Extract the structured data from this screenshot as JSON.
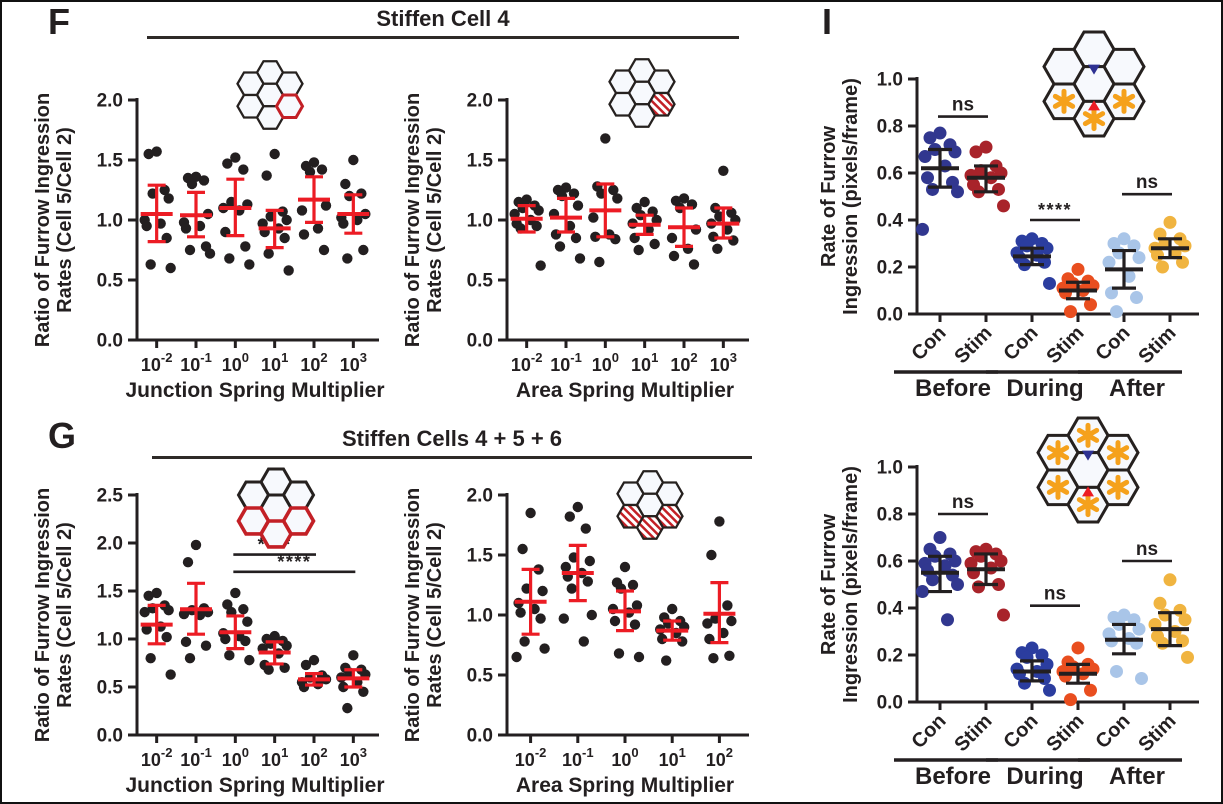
{
  "panels": {
    "F": {
      "letter": "F",
      "title": "Stiffen Cell 4"
    },
    "G": {
      "letter": "G",
      "title": "Stiffen Cells 4 + 5 + 6"
    },
    "I": {
      "letter": "I"
    }
  },
  "colors": {
    "axis": "#231f20",
    "dot_black": "#231f20",
    "mean_red": "#ec1c24",
    "mean_black": "#231f20",
    "hex_outline": "#26211f",
    "hex_red": "#c32026",
    "hex_fill": "#f7f9fd",
    "asterisk_orange": "#f5a11c",
    "tri_blue": "#2e3192",
    "tri_red": "#ec1c24",
    "before_con": "#31378f",
    "before_stim": "#a8232a",
    "during_con": "#2b3d9f",
    "during_stim": "#e94e1f",
    "after_con": "#a9c5e8",
    "after_stim": "#f0b440"
  },
  "chart_data": [
    {
      "id": "f-junction",
      "type": "scatter",
      "panel": "F",
      "title": "Stiffen Cell 4",
      "ylabel": [
        "Ratio of Furrow Ingression",
        "Rates (Cell 5/Cell 2)"
      ],
      "xlabel": "Junction Spring Multiplier",
      "ylim": [
        0,
        2.0
      ],
      "yticks": [
        "0.0",
        "0.5",
        "1.0",
        "1.5",
        "2.0"
      ],
      "xtick_style": "log",
      "categories": [
        "10^-2",
        "10^-1",
        "10^0",
        "10^1",
        "10^2",
        "10^3"
      ],
      "point_color": "dot_black",
      "stat_color": "mean_red",
      "stat_type": "mean_sd",
      "grid": false,
      "groups": [
        {
          "points": [
            1.57,
            1.55,
            1.25,
            1.22,
            1.18,
            1.0,
            0.97,
            0.95,
            0.85,
            0.63,
            0.6
          ],
          "mean": 1.05,
          "lo": 0.82,
          "hi": 1.29
        },
        {
          "points": [
            1.36,
            1.35,
            1.33,
            1.3,
            1.05,
            0.98,
            0.95,
            0.93,
            0.78,
            0.75,
            0.72
          ],
          "mean": 1.04,
          "lo": 0.86,
          "hi": 1.23
        },
        {
          "points": [
            1.52,
            1.47,
            1.42,
            1.15,
            1.13,
            1.1,
            1.08,
            0.9,
            0.78,
            0.68,
            0.63
          ],
          "mean": 1.1,
          "lo": 0.87,
          "hi": 1.34
        },
        {
          "points": [
            1.55,
            1.37,
            1.07,
            1.03,
            1.0,
            0.97,
            0.93,
            0.9,
            0.85,
            0.72,
            0.58
          ],
          "mean": 0.93,
          "lo": 0.77,
          "hi": 1.08
        },
        {
          "points": [
            1.48,
            1.45,
            1.42,
            1.4,
            1.12,
            1.08,
            0.93,
            0.88,
            0.75
          ],
          "mean": 1.17,
          "lo": 0.98,
          "hi": 1.36
        },
        {
          "points": [
            1.5,
            1.3,
            1.22,
            1.2,
            1.05,
            1.02,
            1.0,
            0.97,
            0.75,
            0.68
          ],
          "mean": 1.05,
          "lo": 0.89,
          "hi": 1.21
        }
      ],
      "sig": [],
      "inset": {
        "red_outline": [
          "SE"
        ],
        "hatched": [],
        "asterisks": [],
        "triangles": false
      }
    },
    {
      "id": "f-area",
      "type": "scatter",
      "panel": "F",
      "title": "Stiffen Cell 4",
      "ylabel": [
        "Ratio of Furrow Ingression",
        "Rates (Cell 5/Cell 2)"
      ],
      "xlabel": "Area Spring Multiplier",
      "ylim": [
        0,
        2.0
      ],
      "yticks": [
        "0.0",
        "0.5",
        "1.0",
        "1.5",
        "2.0"
      ],
      "xtick_style": "log",
      "categories": [
        "10^-2",
        "10^-1",
        "10^0",
        "10^1",
        "10^2",
        "10^3"
      ],
      "point_color": "dot_black",
      "stat_color": "mean_red",
      "stat_type": "mean_sd",
      "grid": false,
      "groups": [
        {
          "points": [
            1.17,
            1.15,
            1.12,
            1.1,
            1.08,
            1.05,
            1.0,
            0.97,
            0.95,
            0.93,
            0.62
          ],
          "mean": 1.01,
          "lo": 0.9,
          "hi": 1.12
        },
        {
          "points": [
            1.27,
            1.25,
            1.22,
            1.2,
            1.12,
            1.05,
            0.95,
            0.88,
            0.85,
            0.78,
            0.68
          ],
          "mean": 1.02,
          "lo": 0.9,
          "hi": 1.18
        },
        {
          "points": [
            1.68,
            1.28,
            1.25,
            1.22,
            1.18,
            1.02,
            0.88,
            0.86,
            0.84,
            0.65
          ],
          "mean": 1.08,
          "lo": 0.86,
          "hi": 1.3
        },
        {
          "points": [
            1.15,
            1.1,
            1.07,
            1.04,
            1.0,
            0.97,
            0.92,
            0.85,
            0.8,
            0.75
          ],
          "mean": 0.96,
          "lo": 0.88,
          "hi": 1.04
        },
        {
          "points": [
            1.18,
            1.16,
            1.13,
            1.1,
            0.92,
            0.85,
            0.76,
            0.7,
            0.63
          ],
          "mean": 0.94,
          "lo": 0.78,
          "hi": 1.1
        },
        {
          "points": [
            1.41,
            1.1,
            1.06,
            1.03,
            1.0,
            0.97,
            0.92,
            0.86,
            0.83,
            0.76
          ],
          "mean": 0.97,
          "lo": 0.85,
          "hi": 1.1
        }
      ],
      "sig": [],
      "inset": {
        "red_outline": [],
        "hatched": [
          "SE"
        ],
        "asterisks": [],
        "triangles": false
      }
    },
    {
      "id": "g-junction",
      "type": "scatter",
      "panel": "G",
      "title": "Stiffen Cells 4 + 5 + 6",
      "ylabel": [
        "Ratio of Furrow Ingression",
        "Rates (Cell 5/Cell 2)"
      ],
      "xlabel": "Junction Spring Multiplier",
      "ylim": [
        0,
        2.5
      ],
      "yticks": [
        "0.0",
        "0.5",
        "1.0",
        "1.5",
        "2.0",
        "2.5"
      ],
      "xtick_style": "log",
      "categories": [
        "10^-2",
        "10^-1",
        "10^0",
        "10^1",
        "10^2",
        "10^3"
      ],
      "point_color": "dot_black",
      "stat_color": "mean_red",
      "stat_type": "mean_sd",
      "grid": false,
      "groups": [
        {
          "points": [
            1.48,
            1.45,
            1.35,
            1.32,
            1.3,
            1.28,
            1.13,
            1.1,
            1.02,
            0.8,
            0.63
          ],
          "mean": 1.15,
          "lo": 0.95,
          "hi": 1.35
        },
        {
          "points": [
            1.98,
            1.8,
            1.32,
            1.3,
            1.28,
            1.26,
            1.25,
            0.97,
            0.93,
            0.8
          ],
          "mean": 1.31,
          "lo": 1.05,
          "hi": 1.58
        },
        {
          "points": [
            1.48,
            1.36,
            1.31,
            1.28,
            1.18,
            1.06,
            1.03,
            1.0,
            0.98,
            0.83,
            0.78
          ],
          "mean": 1.07,
          "lo": 0.9,
          "hi": 1.24
        },
        {
          "points": [
            1.03,
            1.0,
            0.98,
            0.95,
            0.93,
            0.9,
            0.85,
            0.73,
            0.7,
            0.68
          ],
          "mean": 0.86,
          "lo": 0.74,
          "hi": 0.97
        },
        {
          "points": [
            0.78,
            0.73,
            0.62,
            0.6,
            0.58,
            0.55,
            0.53,
            0.5
          ],
          "mean": 0.58,
          "lo": 0.52,
          "hi": 0.64
        },
        {
          "points": [
            0.83,
            0.7,
            0.68,
            0.65,
            0.63,
            0.6,
            0.55,
            0.5,
            0.45,
            0.28
          ],
          "mean": 0.59,
          "lo": 0.5,
          "hi": 0.68
        }
      ],
      "sig": [
        {
          "from": 2,
          "to": 4,
          "y": 1.88,
          "label": "****"
        },
        {
          "from": 2,
          "to": 5,
          "y": 1.7,
          "label": "****"
        }
      ],
      "inset": {
        "red_outline": [
          "SW",
          "S",
          "SE"
        ],
        "hatched": [],
        "asterisks": [],
        "triangles": false
      }
    },
    {
      "id": "g-area",
      "type": "scatter",
      "panel": "G",
      "title": "Stiffen Cells 4 + 5 + 6",
      "ylabel": [
        "Ratio of Furrow Ingression",
        "Rates (Cell 5/Cell 2)"
      ],
      "xlabel": "Area Spring Multiplier",
      "ylim": [
        0,
        2.0
      ],
      "yticks": [
        "0.0",
        "0.5",
        "1.0",
        "1.5",
        "2.0"
      ],
      "xtick_style": "log",
      "categories": [
        "10^-2",
        "10^-1",
        "10^0",
        "10^1",
        "10^2"
      ],
      "point_color": "dot_black",
      "stat_color": "mean_red",
      "stat_type": "mean_sd",
      "grid": false,
      "groups": [
        {
          "points": [
            1.85,
            1.55,
            1.38,
            1.22,
            1.2,
            1.1,
            1.05,
            1.02,
            0.97,
            0.78,
            0.72,
            0.65
          ],
          "mean": 1.11,
          "lo": 0.84,
          "hi": 1.38
        },
        {
          "points": [
            1.9,
            1.82,
            1.72,
            1.48,
            1.45,
            1.4,
            1.35,
            1.32,
            1.28,
            1.22,
            1.0,
            0.97,
            0.78
          ],
          "mean": 1.35,
          "lo": 1.12,
          "hi": 1.58
        },
        {
          "points": [
            1.4,
            1.27,
            1.25,
            1.22,
            1.08,
            1.05,
            1.02,
            0.95,
            0.92,
            0.68,
            0.65
          ],
          "mean": 1.03,
          "lo": 0.87,
          "hi": 1.2
        },
        {
          "points": [
            1.05,
            0.98,
            0.95,
            0.93,
            0.9,
            0.88,
            0.85,
            0.8,
            0.78,
            0.62
          ],
          "mean": 0.87,
          "lo": 0.79,
          "hi": 0.95
        },
        {
          "points": [
            1.78,
            1.5,
            1.08,
            0.97,
            0.95,
            0.93,
            0.85,
            0.8,
            0.66,
            0.64
          ],
          "mean": 1.01,
          "lo": 0.77,
          "hi": 1.27
        }
      ],
      "sig": [],
      "inset": {
        "red_outline": [],
        "hatched": [
          "SW",
          "S",
          "SE"
        ],
        "asterisks": [],
        "triangles": false
      }
    },
    {
      "id": "i-top",
      "type": "scatter",
      "panel": "I",
      "ylabel": [
        "Rate of Furrow",
        "Ingression (pixels/frame)"
      ],
      "xlabel": "",
      "ylim": [
        0,
        1.0
      ],
      "yticks": [
        "0.0",
        "0.2",
        "0.4",
        "0.6",
        "0.8",
        "1.0"
      ],
      "xtick_style": "angled",
      "categories": [
        "Con",
        "Stim",
        "Con",
        "Stim",
        "Con",
        "Stim"
      ],
      "phases": [
        "Before",
        "During",
        "After"
      ],
      "point_color": "dot_black",
      "stat_color": "mean_black",
      "stat_type": "mean_sd",
      "grid": false,
      "groups": [
        {
          "name": "Before Con",
          "color": "before_con",
          "points": [
            0.77,
            0.75,
            0.72,
            0.7,
            0.69,
            0.67,
            0.63,
            0.58,
            0.56,
            0.53,
            0.52,
            0.36
          ],
          "mean": 0.62,
          "lo": 0.54,
          "hi": 0.7
        },
        {
          "name": "Before Stim",
          "color": "before_stim",
          "points": [
            0.71,
            0.69,
            0.63,
            0.61,
            0.6,
            0.59,
            0.58,
            0.55,
            0.53,
            0.52,
            0.46
          ],
          "mean": 0.58,
          "lo": 0.52,
          "hi": 0.63
        },
        {
          "name": "During Con",
          "color": "during_con",
          "points": [
            0.32,
            0.31,
            0.3,
            0.29,
            0.28,
            0.26,
            0.25,
            0.24,
            0.22,
            0.21,
            0.13
          ],
          "mean": 0.245,
          "lo": 0.21,
          "hi": 0.28
        },
        {
          "name": "During Stim",
          "color": "during_stim",
          "points": [
            0.19,
            0.15,
            0.14,
            0.13,
            0.12,
            0.11,
            0.1,
            0.09,
            0.04,
            0.01
          ],
          "mean": 0.1,
          "lo": 0.065,
          "hi": 0.135
        },
        {
          "name": "After Con",
          "color": "after_con",
          "points": [
            0.32,
            0.3,
            0.29,
            0.26,
            0.24,
            0.22,
            0.16,
            0.09,
            0.07,
            0.01
          ],
          "mean": 0.19,
          "lo": 0.11,
          "hi": 0.27
        },
        {
          "name": "After Stim",
          "color": "after_stim",
          "points": [
            0.39,
            0.34,
            0.32,
            0.3,
            0.29,
            0.28,
            0.26,
            0.25,
            0.22,
            0.2
          ],
          "mean": 0.28,
          "lo": 0.24,
          "hi": 0.32
        }
      ],
      "sig": [
        {
          "from": 0,
          "to": 1,
          "y": 0.84,
          "label": "ns"
        },
        {
          "from": 2,
          "to": 3,
          "y": 0.4,
          "label": "****"
        },
        {
          "from": 4,
          "to": 5,
          "y": 0.51,
          "label": "ns"
        }
      ],
      "inset": {
        "red_outline": [],
        "hatched": [],
        "asterisks": [
          "SW",
          "S",
          "SE"
        ],
        "triangles": true
      }
    },
    {
      "id": "i-bottom",
      "type": "scatter",
      "panel": "I",
      "ylabel": [
        "Rate of Furrow",
        "Ingression (pixels/frame)"
      ],
      "xlabel": "",
      "ylim": [
        0,
        1.0
      ],
      "yticks": [
        "0.0",
        "0.2",
        "0.4",
        "0.6",
        "0.8",
        "1.0"
      ],
      "xtick_style": "angled",
      "categories": [
        "Con",
        "Stim",
        "Con",
        "Stim",
        "Con",
        "Stim"
      ],
      "phases": [
        "Before",
        "During",
        "After"
      ],
      "point_color": "dot_black",
      "stat_color": "mean_black",
      "stat_type": "mean_sd",
      "grid": false,
      "groups": [
        {
          "name": "Before Con",
          "color": "before_con",
          "points": [
            0.7,
            0.65,
            0.63,
            0.62,
            0.6,
            0.59,
            0.58,
            0.56,
            0.54,
            0.52,
            0.5,
            0.47,
            0.35
          ],
          "mean": 0.55,
          "lo": 0.47,
          "hi": 0.62
        },
        {
          "name": "Before Stim",
          "color": "before_stim",
          "points": [
            0.65,
            0.64,
            0.63,
            0.62,
            0.6,
            0.59,
            0.57,
            0.55,
            0.5,
            0.49,
            0.37
          ],
          "mean": 0.565,
          "lo": 0.5,
          "hi": 0.63
        },
        {
          "name": "During Con",
          "color": "during_con",
          "points": [
            0.23,
            0.21,
            0.2,
            0.19,
            0.16,
            0.14,
            0.13,
            0.12,
            0.1,
            0.08,
            0.05
          ],
          "mean": 0.13,
          "lo": 0.09,
          "hi": 0.175
        },
        {
          "name": "During Stim",
          "color": "during_stim",
          "points": [
            0.23,
            0.17,
            0.16,
            0.15,
            0.14,
            0.13,
            0.12,
            0.11,
            0.05,
            0.01
          ],
          "mean": 0.12,
          "lo": 0.08,
          "hi": 0.16
        },
        {
          "name": "After Con",
          "color": "after_con",
          "points": [
            0.37,
            0.36,
            0.35,
            0.33,
            0.31,
            0.29,
            0.27,
            0.26,
            0.25,
            0.13,
            0.1
          ],
          "mean": 0.265,
          "lo": 0.205,
          "hi": 0.33
        },
        {
          "name": "After Stim",
          "color": "after_stim",
          "points": [
            0.52,
            0.42,
            0.39,
            0.37,
            0.35,
            0.33,
            0.3,
            0.28,
            0.26,
            0.25,
            0.19
          ],
          "mean": 0.31,
          "lo": 0.24,
          "hi": 0.38
        }
      ],
      "sig": [
        {
          "from": 0,
          "to": 1,
          "y": 0.8,
          "label": "ns"
        },
        {
          "from": 2,
          "to": 3,
          "y": 0.41,
          "label": "ns"
        },
        {
          "from": 4,
          "to": 5,
          "y": 0.6,
          "label": "ns"
        }
      ],
      "inset": {
        "red_outline": [],
        "hatched": [],
        "asterisks": [
          "N",
          "NW",
          "NE",
          "SW",
          "S",
          "SE"
        ],
        "triangles": true
      }
    }
  ]
}
